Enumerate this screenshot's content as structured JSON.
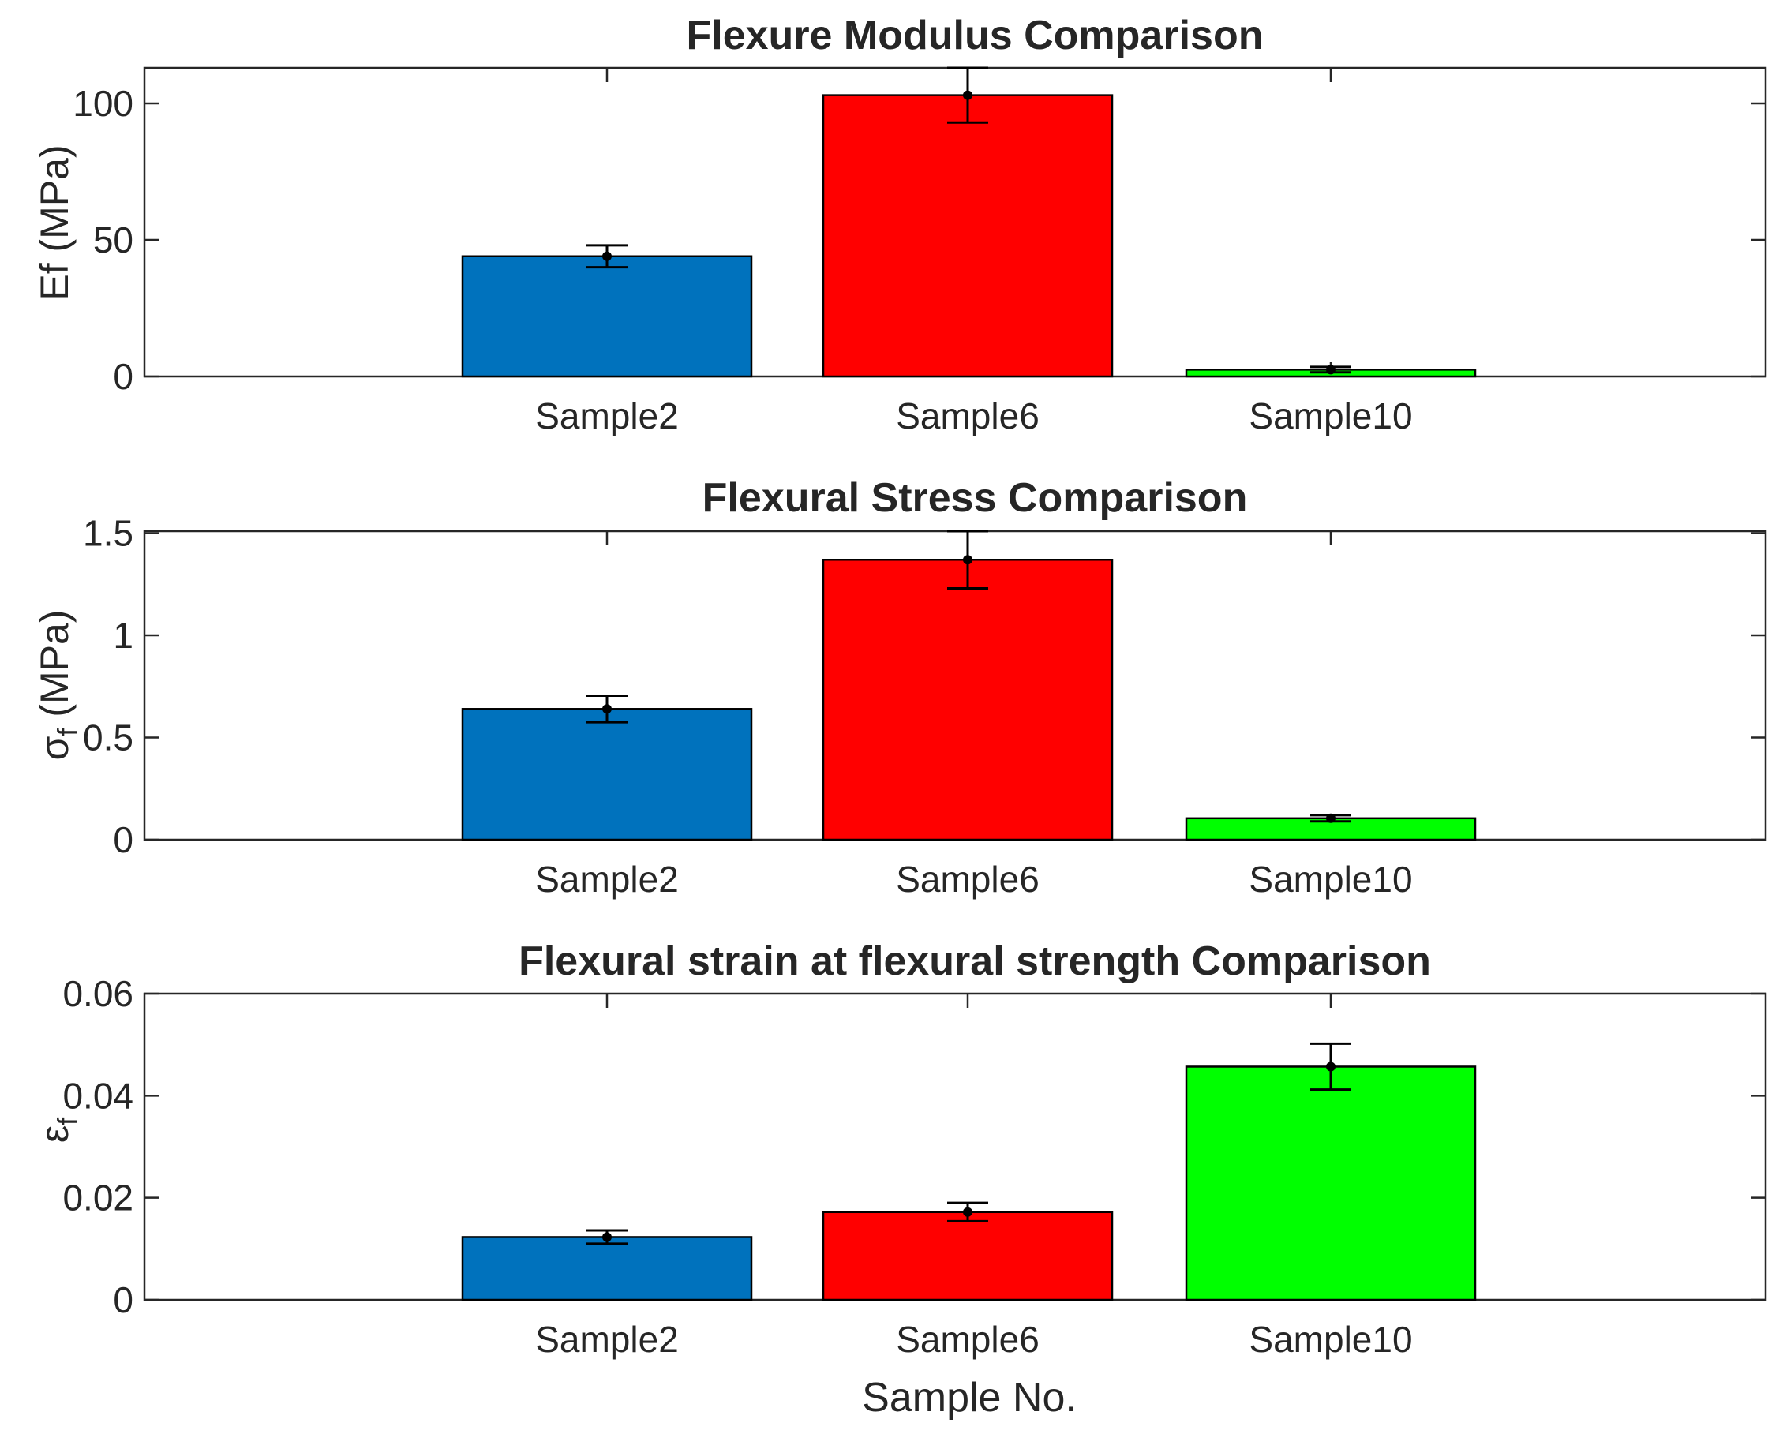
{
  "chart_data": [
    {
      "type": "bar",
      "title": "Flexure Modulus Comparison",
      "xlabel": "",
      "ylabel": "Ef (MPa)",
      "categories": [
        "Sample2",
        "Sample6",
        "Sample10"
      ],
      "values": [
        44,
        103,
        2.5
      ],
      "errors": [
        4,
        10,
        1
      ],
      "colors": [
        "#0072BD",
        "#FF0000",
        "#00FF00"
      ],
      "ylim": [
        0,
        113
      ],
      "yticks": [
        0,
        50,
        100
      ],
      "ytick_labels": [
        "0",
        "50",
        "100"
      ]
    },
    {
      "type": "bar",
      "title": "Flexural Stress Comparison",
      "xlabel": "",
      "ylabel": "σ",
      "ylabel_sub": "f",
      "ylabel_suffix": " (MPa)",
      "categories": [
        "Sample2",
        "Sample6",
        "Sample10"
      ],
      "values": [
        0.64,
        1.37,
        0.105
      ],
      "errors": [
        0.065,
        0.14,
        0.015
      ],
      "colors": [
        "#0072BD",
        "#FF0000",
        "#00FF00"
      ],
      "ylim": [
        0,
        1.51
      ],
      "yticks": [
        0,
        0.5,
        1,
        1.5
      ],
      "ytick_labels": [
        "0",
        "0.5",
        "1",
        "1.5"
      ]
    },
    {
      "type": "bar",
      "title": "Flexural strain at flexural strength Comparison",
      "xlabel": "Sample No.",
      "ylabel": "ε",
      "ylabel_sub": "f",
      "ylabel_suffix": "",
      "categories": [
        "Sample2",
        "Sample6",
        "Sample10"
      ],
      "values": [
        0.0123,
        0.0172,
        0.0457
      ],
      "errors": [
        0.0013,
        0.0018,
        0.0045
      ],
      "colors": [
        "#0072BD",
        "#FF0000",
        "#00FF00"
      ],
      "ylim": [
        0,
        0.06
      ],
      "yticks": [
        0,
        0.02,
        0.04,
        0.06
      ],
      "ytick_labels": [
        "0",
        "0.02",
        "0.04",
        "0.06"
      ]
    }
  ]
}
